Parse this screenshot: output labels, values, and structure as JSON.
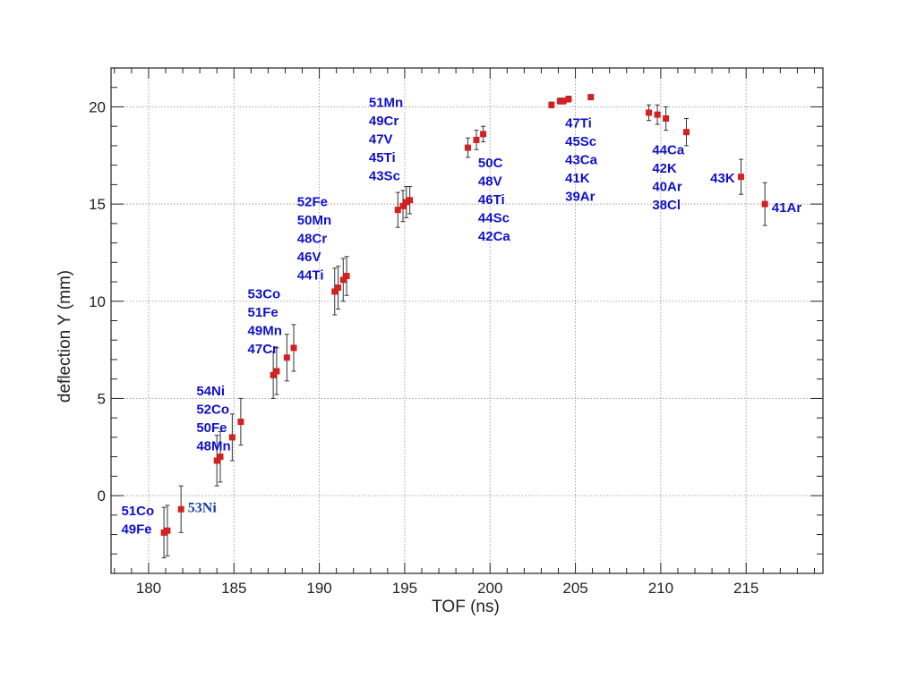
{
  "chart_data": {
    "type": "scatter",
    "xlabel": "TOF (ns)",
    "ylabel": "deflection Y (mm)",
    "xlim": [
      177.8,
      219.5
    ],
    "ylim": [
      -4,
      22
    ],
    "xticks": [
      180,
      185,
      190,
      195,
      200,
      205,
      210,
      215
    ],
    "yticks": [
      0,
      5,
      10,
      15,
      20
    ],
    "grid": true,
    "colors": {
      "marker": "#d42020",
      "errorbar": "#333333",
      "label": "#1010cc",
      "grid": "#9a9a9a"
    },
    "points": [
      {
        "x": 180.9,
        "y": -1.9,
        "err": 1.3
      },
      {
        "x": 181.1,
        "y": -1.8,
        "err": 1.3
      },
      {
        "x": 181.9,
        "y": -0.7,
        "err": 1.2
      },
      {
        "x": 184.0,
        "y": 1.8,
        "err": 1.3
      },
      {
        "x": 184.2,
        "y": 2.0,
        "err": 1.3
      },
      {
        "x": 184.9,
        "y": 3.0,
        "err": 1.2
      },
      {
        "x": 185.4,
        "y": 3.8,
        "err": 1.2
      },
      {
        "x": 187.3,
        "y": 6.2,
        "err": 1.2
      },
      {
        "x": 187.5,
        "y": 6.4,
        "err": 1.2
      },
      {
        "x": 188.1,
        "y": 7.1,
        "err": 1.2
      },
      {
        "x": 188.5,
        "y": 7.6,
        "err": 1.2
      },
      {
        "x": 190.9,
        "y": 10.5,
        "err": 1.2
      },
      {
        "x": 191.1,
        "y": 10.7,
        "err": 1.1
      },
      {
        "x": 191.4,
        "y": 11.1,
        "err": 1.1
      },
      {
        "x": 191.6,
        "y": 11.3,
        "err": 1.0
      },
      {
        "x": 194.6,
        "y": 14.7,
        "err": 0.9
      },
      {
        "x": 194.9,
        "y": 14.9,
        "err": 0.8
      },
      {
        "x": 195.1,
        "y": 15.1,
        "err": 0.8
      },
      {
        "x": 195.3,
        "y": 15.2,
        "err": 0.7
      },
      {
        "x": 198.7,
        "y": 17.9,
        "err": 0.5
      },
      {
        "x": 199.2,
        "y": 18.3,
        "err": 0.5
      },
      {
        "x": 199.6,
        "y": 18.6,
        "err": 0.4
      },
      {
        "x": 203.6,
        "y": 20.1,
        "err": 0.15
      },
      {
        "x": 204.1,
        "y": 20.3,
        "err": 0.15
      },
      {
        "x": 204.3,
        "y": 20.3,
        "err": 0.15
      },
      {
        "x": 204.6,
        "y": 20.4,
        "err": 0.15
      },
      {
        "x": 205.9,
        "y": 20.5,
        "err": 0.1
      },
      {
        "x": 209.3,
        "y": 19.7,
        "err": 0.4
      },
      {
        "x": 209.8,
        "y": 19.6,
        "err": 0.5
      },
      {
        "x": 210.3,
        "y": 19.4,
        "err": 0.6
      },
      {
        "x": 211.5,
        "y": 18.7,
        "err": 0.7
      },
      {
        "x": 214.7,
        "y": 16.4,
        "err": 0.9
      },
      {
        "x": 216.1,
        "y": 15.0,
        "err": 1.1
      }
    ],
    "annotations": [
      {
        "lines": [
          "51Co",
          "49Fe"
        ],
        "x": 178.4,
        "y": -1.0,
        "style": "sans"
      },
      {
        "lines": [
          "53Ni"
        ],
        "x": 182.3,
        "y": -0.85,
        "style": "serif"
      },
      {
        "lines": [
          "54Ni",
          "52Co",
          "50Fe",
          "48Mn"
        ],
        "x": 182.8,
        "y": 5.15,
        "style": "sans"
      },
      {
        "lines": [
          "53Co",
          "51Fe",
          "49Mn",
          "47Cr"
        ],
        "x": 185.8,
        "y": 10.15,
        "style": "sans"
      },
      {
        "lines": [
          "52Fe",
          "50Mn",
          "48Cr",
          "46V",
          "44Ti"
        ],
        "x": 188.7,
        "y": 14.9,
        "style": "sans"
      },
      {
        "lines": [
          "51Mn",
          "49Cr",
          "47V",
          "45Ti",
          "43Sc"
        ],
        "x": 192.9,
        "y": 20.0,
        "style": "sans"
      },
      {
        "lines": [
          "50C",
          "48V",
          "46Ti",
          "44Sc",
          "42Ca"
        ],
        "x": 199.3,
        "y": 16.9,
        "style": "sans"
      },
      {
        "lines": [
          "47Ti",
          "45Sc",
          "43Ca",
          "41K",
          "39Ar"
        ],
        "x": 204.4,
        "y": 18.95,
        "style": "sans"
      },
      {
        "lines": [
          "44Ca",
          "42K",
          "40Ar",
          "38Cl"
        ],
        "x": 209.5,
        "y": 17.55,
        "style": "sans"
      },
      {
        "lines": [
          "43K"
        ],
        "x": 212.9,
        "y": 16.1,
        "style": "sans"
      },
      {
        "lines": [
          "41Ar"
        ],
        "x": 216.5,
        "y": 14.6,
        "style": "sans"
      }
    ]
  }
}
